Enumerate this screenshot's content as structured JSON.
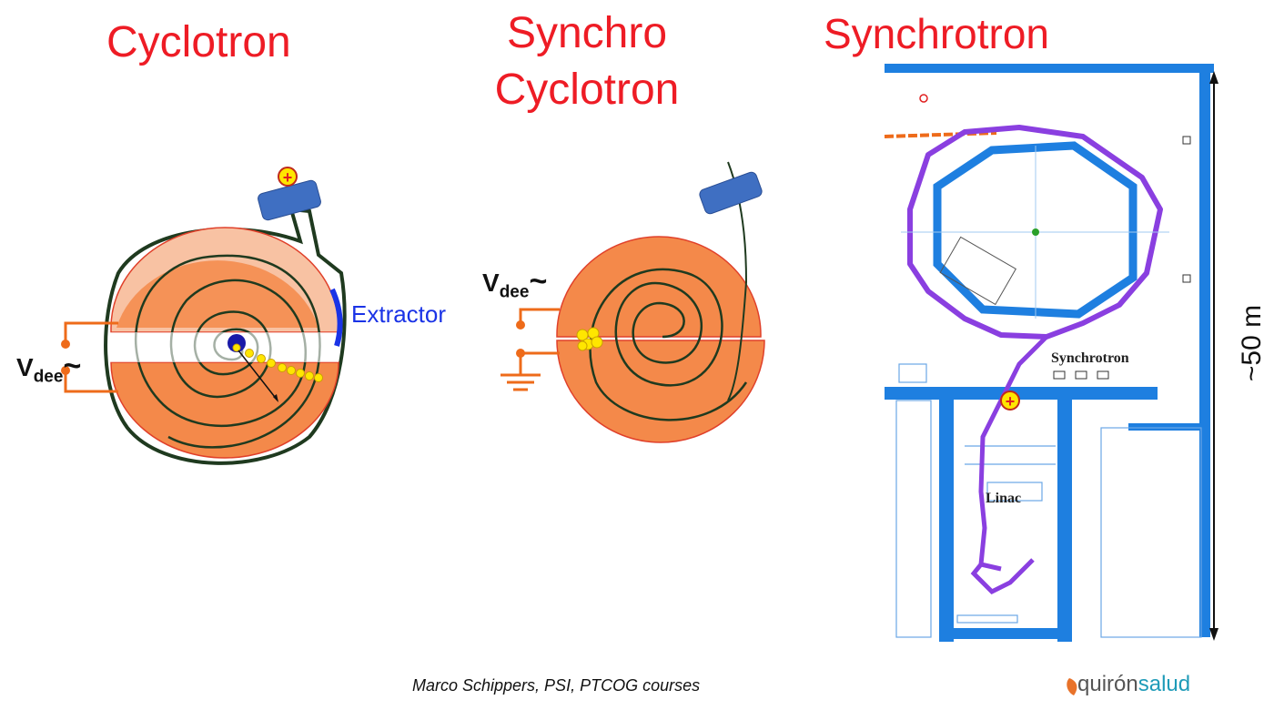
{
  "titles": {
    "cyclotron": "Cyclotron",
    "synchro_line1": "Synchro",
    "synchro_line2": "Cyclotron",
    "synchrotron": "Synchrotron"
  },
  "labels": {
    "extractor": "Extractor",
    "vdee_main": "V",
    "vdee_sub": "dee",
    "tilde": "~",
    "plus": "+",
    "distance": "~50 m",
    "plan_synchrotron": "Synchrotron",
    "plan_linac": "Linac"
  },
  "footer": {
    "credit": "Marco Schippers, PSI, PTCOG courses",
    "brand_a": "quirón",
    "brand_b": "salud"
  },
  "colors": {
    "title_red": "#ee1c25",
    "dee_orange": "#f4894a",
    "dee_light": "#f8c2a3",
    "wire": "#ee6b1a",
    "dark_green": "#1f3a1f",
    "extractor_blue": "#1a33e6",
    "wall_blue": "#1e7fe0",
    "path_purple": "#8a3fe0",
    "source_blue": "#3f6fc2",
    "particle_yellow": "#ffe600"
  }
}
